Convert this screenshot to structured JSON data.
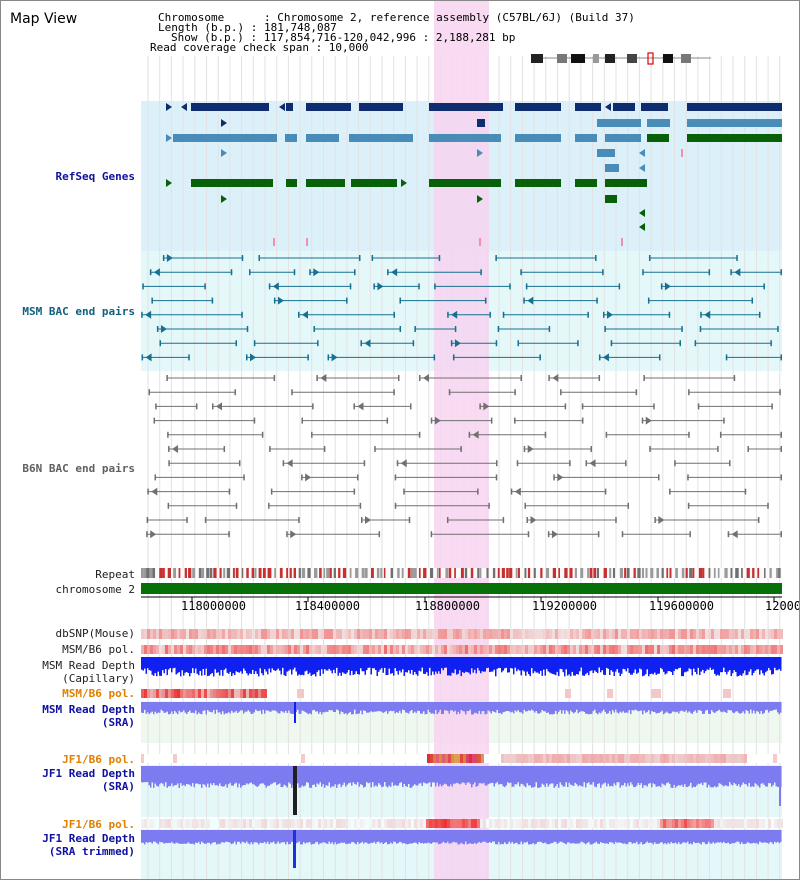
{
  "header": {
    "title": "Map View",
    "info_lines": [
      "Chromosome      : Chromosome 2, reference assembly (C57BL/6J) (Build 37)",
      "Length (b.p.) : 181,748,087",
      "Show (b.p.) : 117,854,716-120,042,996 : 2,188,281 bp",
      "Read coverage check span : 10,000"
    ]
  },
  "tracks": {
    "refseq": "RefSeq Genes",
    "msm_bac": "MSM BAC end pairs",
    "b6n_bac": "B6N BAC end pairs",
    "repeat": "Repeat",
    "chromosome": "chromosome 2",
    "dbsnp": "dbSNP(Mouse)",
    "msm_b6_pol_1": "MSM/B6 pol.",
    "msm_depth_cap_1": "MSM Read Depth",
    "msm_depth_cap_2": "(Capillary)",
    "msm_b6_pol_2": "MSM/B6 pol.",
    "msm_depth_sra_1": "MSM Read Depth",
    "msm_depth_sra_2": "(SRA)",
    "jf1_pol_1": "JF1/B6 pol.",
    "jf1_depth_sra_1": "JF1 Read Depth",
    "jf1_depth_sra_2": "(SRA)",
    "jf1_pol_2": "JF1/B6 pol.",
    "jf1_depth_trim_1": "JF1 Read Depth",
    "jf1_depth_trim_2": "(SRA trimmed)"
  },
  "axis": {
    "ticks": [
      "118000000",
      "118400000",
      "118800000",
      "119200000",
      "119600000",
      "12000"
    ]
  },
  "colors": {
    "highlight": "#f7d4f0",
    "refseq_bg": "#dcf0fa",
    "msm_bac_bg": "#e4f8fa",
    "gene_dark": "#0e2c6e",
    "gene_mid": "#4a8cb8",
    "gene_green": "#086008",
    "chromosome": "#087008",
    "depth_blue": "#1020f0",
    "depth_lav": "#7c7cf0",
    "snp_red": "#e03030"
  }
}
